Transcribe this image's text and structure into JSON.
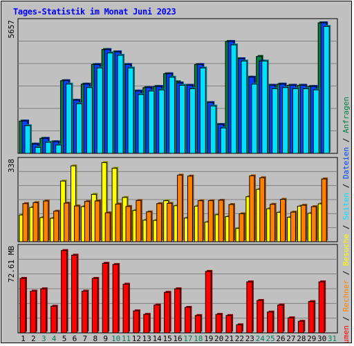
{
  "title": "Tages-Statistik im Monat Juni 2023",
  "colors": {
    "title": "#0000ff",
    "frame_bg": "#c0c0c0",
    "anfragen": "#008040",
    "dateien": "#0040ff",
    "seiten": "#00e0ff",
    "besuche": "#ffff00",
    "rechner": "#ff8000",
    "volumen": "#ff0000",
    "weekend_day": "#00805c",
    "weekday": "#000000"
  },
  "side_labels": {
    "anfragen": "Anfragen",
    "dateien": "Dateien",
    "seiten": "Seiten",
    "besuche": "Besuche",
    "rechner": "Rechner",
    "volumen": "Volumen",
    "separator": " / "
  },
  "chart_data": [
    {
      "type": "bar",
      "panel": "top",
      "y_max_label": "5657",
      "ylim": [
        0,
        5657
      ],
      "categories": [
        "1",
        "2",
        "3",
        "4",
        "5",
        "6",
        "7",
        "8",
        "9",
        "10",
        "11",
        "12",
        "13",
        "14",
        "15",
        "16",
        "17",
        "18",
        "19",
        "20",
        "21",
        "22",
        "23",
        "24",
        "25",
        "26",
        "27",
        "28",
        "29",
        "30",
        "31"
      ],
      "weekend_days": [
        "3",
        "4",
        "10",
        "11",
        "17",
        "18",
        "24",
        "25",
        "31"
      ],
      "series": [
        {
          "name": "Anfragen",
          "values": [
            1400,
            400,
            650,
            500,
            3150,
            2300,
            3000,
            3850,
            4500,
            4400,
            3850,
            2700,
            2850,
            2900,
            3450,
            3100,
            2950,
            3850,
            2200,
            1250,
            4850,
            4100,
            3300,
            4200,
            2950,
            3000,
            2950,
            2950,
            2900,
            5657,
            0
          ]
        },
        {
          "name": "Dateien",
          "values": [
            1400,
            400,
            650,
            500,
            3150,
            2300,
            3000,
            3850,
            4500,
            4400,
            3850,
            2700,
            2850,
            2900,
            3450,
            3050,
            2950,
            3850,
            2200,
            1250,
            4850,
            4100,
            3300,
            4000,
            2950,
            3000,
            2950,
            2950,
            2900,
            5657,
            0
          ]
        },
        {
          "name": "Seiten",
          "values": [
            1200,
            260,
            480,
            360,
            3000,
            2150,
            2850,
            3700,
            4350,
            4250,
            3700,
            2550,
            2700,
            2750,
            3300,
            2950,
            2800,
            3700,
            2050,
            1100,
            4700,
            4000,
            3000,
            4000,
            2800,
            2850,
            2800,
            2800,
            2750,
            5500,
            0
          ]
        }
      ]
    },
    {
      "type": "bar",
      "panel": "middle",
      "y_max_label": "338",
      "ylim": [
        0,
        338
      ],
      "categories": [
        "1",
        "2",
        "3",
        "4",
        "5",
        "6",
        "7",
        "8",
        "9",
        "10",
        "11",
        "12",
        "13",
        "14",
        "15",
        "16",
        "17",
        "18",
        "19",
        "20",
        "21",
        "22",
        "23",
        "24",
        "25",
        "26",
        "27",
        "28",
        "29",
        "30",
        "31"
      ],
      "series": [
        {
          "name": "Besuche",
          "values": [
            113,
            145,
            102,
            99,
            256,
            320,
            148,
            200,
            334,
            310,
            187,
            132,
            91,
            90,
            173,
            152,
            100,
            150,
            83,
            114,
            106,
            56,
            190,
            221,
            139,
            124,
            103,
            150,
            120,
            160,
            0
          ]
        },
        {
          "name": "Rechner",
          "values": [
            161,
            165,
            172,
            129,
            163,
            151,
            170,
            172,
            122,
            159,
            149,
            174,
            126,
            161,
            162,
            281,
            277,
            173,
            173,
            175,
            157,
            118,
            278,
            270,
            158,
            179,
            125,
            154,
            148,
            265,
            0
          ]
        }
      ]
    },
    {
      "type": "bar",
      "panel": "bottom",
      "y_max_label": "72.61 MB",
      "ylim": [
        0,
        72.61
      ],
      "categories": [
        "1",
        "2",
        "3",
        "4",
        "5",
        "6",
        "7",
        "8",
        "9",
        "10",
        "11",
        "12",
        "13",
        "14",
        "15",
        "16",
        "17",
        "18",
        "19",
        "20",
        "21",
        "22",
        "23",
        "24",
        "25",
        "26",
        "27",
        "28",
        "29",
        "30",
        "31"
      ],
      "series": [
        {
          "name": "Volumen",
          "values": [
            47,
            36,
            38,
            23,
            71,
            67,
            36,
            47,
            60,
            59,
            42,
            19,
            16,
            24,
            35,
            38,
            22,
            15,
            53,
            16,
            15,
            7,
            44,
            28,
            18,
            24,
            13,
            10,
            27,
            44,
            0
          ]
        }
      ]
    }
  ]
}
